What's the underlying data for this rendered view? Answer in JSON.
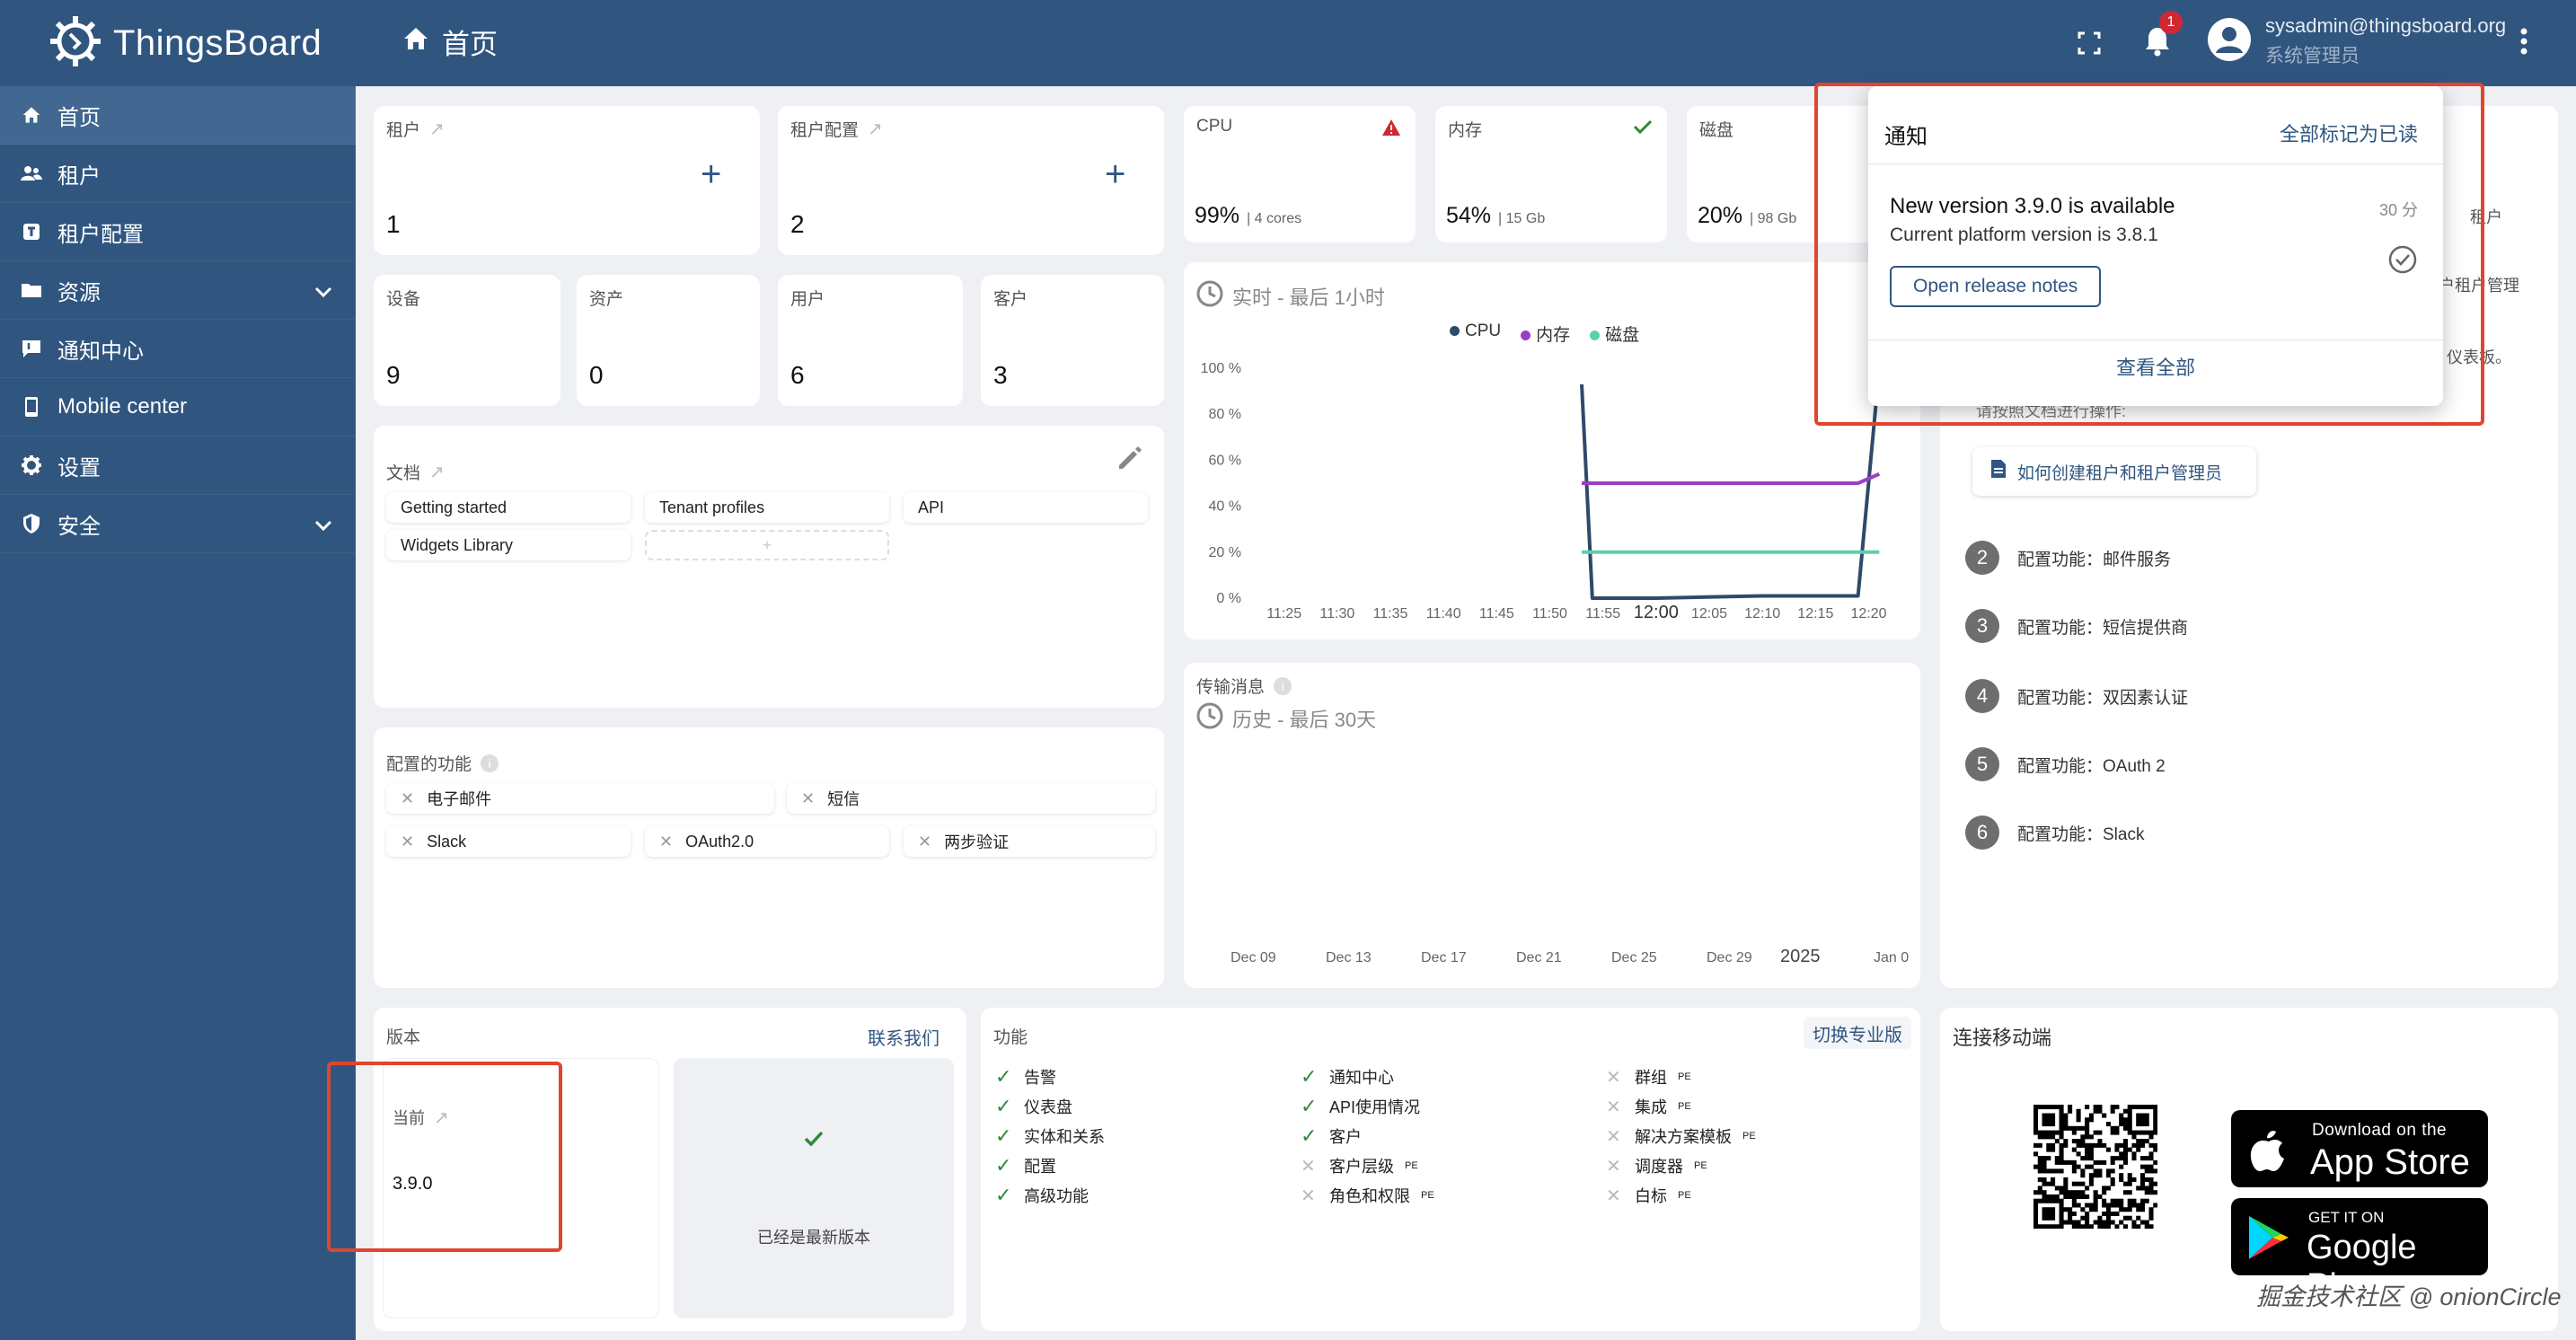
{
  "app": {
    "name": "ThingsBoard"
  },
  "header": {
    "breadcrumb": "首页",
    "notification_count": "1",
    "user_email": "sysadmin@thingsboard.org",
    "user_role": "系统管理员"
  },
  "sidebar": {
    "items": [
      {
        "label": "首页",
        "icon": "home-icon",
        "active": true
      },
      {
        "label": "租户",
        "icon": "tenants-icon"
      },
      {
        "label": "租户配置",
        "icon": "tenant-profile-icon"
      },
      {
        "label": "资源",
        "icon": "folder-icon",
        "expandable": true
      },
      {
        "label": "通知中心",
        "icon": "notification-center-icon"
      },
      {
        "label": "Mobile center",
        "icon": "mobile-icon"
      },
      {
        "label": "设置",
        "icon": "gear-icon"
      },
      {
        "label": "安全",
        "icon": "shield-icon",
        "expandable": true
      }
    ]
  },
  "counts": {
    "tenants": {
      "label": "租户",
      "value": "1"
    },
    "tenant_profiles": {
      "label": "租户配置",
      "value": "2"
    },
    "devices": {
      "label": "设备",
      "value": "9"
    },
    "assets": {
      "label": "资产",
      "value": "0"
    },
    "users": {
      "label": "用户",
      "value": "6"
    },
    "customers": {
      "label": "客户",
      "value": "3"
    }
  },
  "system": {
    "cpu": {
      "label": "CPU",
      "value": "99%",
      "sub": "| 4 cores",
      "status": "warning"
    },
    "memory": {
      "label": "内存",
      "value": "54%",
      "sub": "| 15 Gb",
      "status": "ok"
    },
    "disk": {
      "label": "磁盘",
      "value": "20%",
      "sub": "| 98 Gb"
    }
  },
  "docs": {
    "title": "文档",
    "links": [
      "Getting started",
      "Tenant profiles",
      "API",
      "Widgets Library"
    ],
    "add_label": "+"
  },
  "features_configured": {
    "title": "配置的功能",
    "items": [
      "电子邮件",
      "短信",
      "Slack",
      "OAuth2.0",
      "两步验证"
    ]
  },
  "realtime": {
    "label": "实时 - 最后 1小时",
    "legend": [
      "CPU",
      "内存",
      "磁盘"
    ],
    "y_ticks": [
      "100 %",
      "80 %",
      "60 %",
      "40 %",
      "20 %",
      "0 %"
    ],
    "x_ticks": [
      "11:25",
      "11:30",
      "11:35",
      "11:40",
      "11:45",
      "11:50",
      "11:55",
      "12:00",
      "12:05",
      "12:10",
      "12:15",
      "12:20"
    ]
  },
  "chart_data": {
    "type": "line",
    "x": [
      "11:25",
      "11:30",
      "11:35",
      "11:40",
      "11:45",
      "11:50",
      "11:55",
      "12:00",
      "12:05",
      "12:10",
      "12:15",
      "12:20"
    ],
    "ylim": [
      0,
      100
    ],
    "series": [
      {
        "name": "CPU",
        "color": "#2e4a6b",
        "points": [
          [
            "11:53",
            93
          ],
          [
            "11:54",
            0
          ],
          [
            "12:00",
            0
          ],
          [
            "12:10",
            1
          ],
          [
            "12:19",
            1
          ],
          [
            "12:21",
            100
          ]
        ]
      },
      {
        "name": "内存",
        "color": "#9b3fc2",
        "points": [
          [
            "11:53",
            50
          ],
          [
            "12:19",
            50
          ],
          [
            "12:21",
            54
          ]
        ]
      },
      {
        "name": "磁盘",
        "color": "#5ccfb0",
        "points": [
          [
            "11:53",
            20
          ],
          [
            "12:21",
            20
          ]
        ]
      }
    ]
  },
  "transport": {
    "title": "传输消息",
    "label": "历史 - 最后 30天",
    "x_ticks": [
      "Dec 09",
      "Dec 13",
      "Dec 17",
      "Dec 21",
      "Dec 25",
      "Dec 29",
      "2025",
      "Jan 0"
    ]
  },
  "guide": {
    "tenant_hdr": "租户",
    "tenant_admin_text": "户租户管理",
    "dashboard_text": "仪表板。",
    "instructions": "请按照文档进行操作:",
    "button_label": "如何创建租户和租户管理员",
    "steps": [
      {
        "num": "2",
        "label": "配置功能：邮件服务"
      },
      {
        "num": "3",
        "label": "配置功能：短信提供商"
      },
      {
        "num": "4",
        "label": "配置功能：双因素认证"
      },
      {
        "num": "5",
        "label": "配置功能：OAuth 2"
      },
      {
        "num": "6",
        "label": "配置功能：Slack"
      }
    ]
  },
  "version": {
    "title": "版本",
    "contact_label": "联系我们",
    "current_label": "当前",
    "current_value": "3.9.0",
    "latest_label": "已经是最新版本"
  },
  "features": {
    "title": "功能",
    "switch_label": "切换专业版",
    "col1": [
      {
        "label": "告警",
        "enabled": true
      },
      {
        "label": "仪表盘",
        "enabled": true
      },
      {
        "label": "实体和关系",
        "enabled": true
      },
      {
        "label": "配置",
        "enabled": true
      },
      {
        "label": "高级功能",
        "enabled": true
      }
    ],
    "col2": [
      {
        "label": "通知中心",
        "enabled": true
      },
      {
        "label": "API使用情况",
        "enabled": true
      },
      {
        "label": "客户",
        "enabled": true
      },
      {
        "label": "客户层级",
        "enabled": false,
        "pe": "PE"
      },
      {
        "label": "角色和权限",
        "enabled": false,
        "pe": "PE"
      }
    ],
    "col3": [
      {
        "label": "群组",
        "enabled": false,
        "pe": "PE"
      },
      {
        "label": "集成",
        "enabled": false,
        "pe": "PE"
      },
      {
        "label": "解决方案模板",
        "enabled": false,
        "pe": "PE"
      },
      {
        "label": "调度器",
        "enabled": false,
        "pe": "PE"
      },
      {
        "label": "白标",
        "enabled": false,
        "pe": "PE"
      }
    ]
  },
  "mobile": {
    "title": "连接移动端",
    "appstore_top": "Download on the",
    "appstore_main": "App Store",
    "gplay_top": "GET IT ON",
    "gplay_main": "Google Play"
  },
  "notification_popup": {
    "title": "通知",
    "mark_all": "全部标记为已读",
    "item_title": "New version 3.9.0 is available",
    "item_desc": "Current platform version is 3.8.1",
    "item_time": "30 分",
    "item_button": "Open release notes",
    "view_all": "查看全部"
  },
  "watermark": "掘金技术社区 @ onionCircle"
}
